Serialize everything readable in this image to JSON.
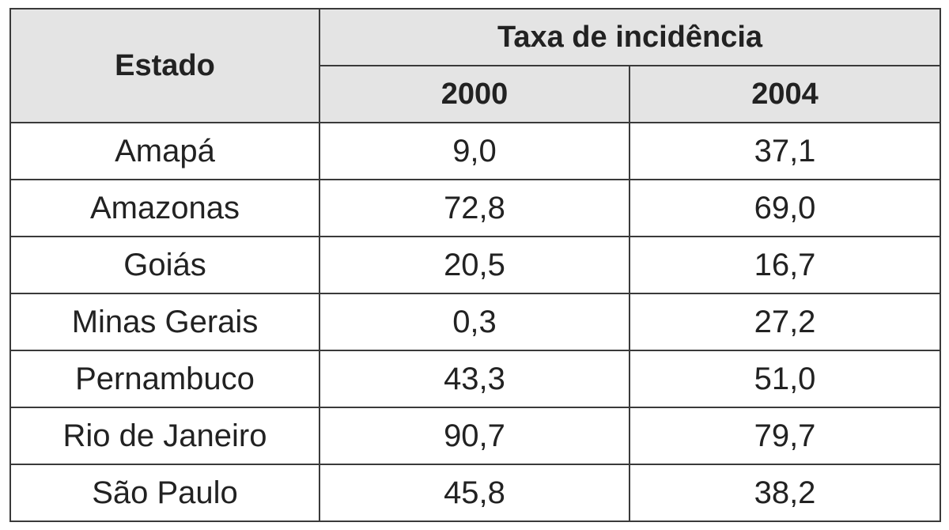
{
  "table": {
    "header": {
      "state": "Estado",
      "group": "Taxa de incidência",
      "years": [
        "2000",
        "2004"
      ]
    },
    "rows": [
      [
        "Amapá",
        "9,0",
        "37,1"
      ],
      [
        "Amazonas",
        "72,8",
        "69,0"
      ],
      [
        "Goiás",
        "20,5",
        "16,7"
      ],
      [
        "Minas Gerais",
        "0,3",
        "27,2"
      ],
      [
        "Pernambuco",
        "43,3",
        "51,0"
      ],
      [
        "Rio de Janeiro",
        "90,7",
        "79,7"
      ],
      [
        "São Paulo",
        "45,8",
        "38,2"
      ]
    ]
  }
}
